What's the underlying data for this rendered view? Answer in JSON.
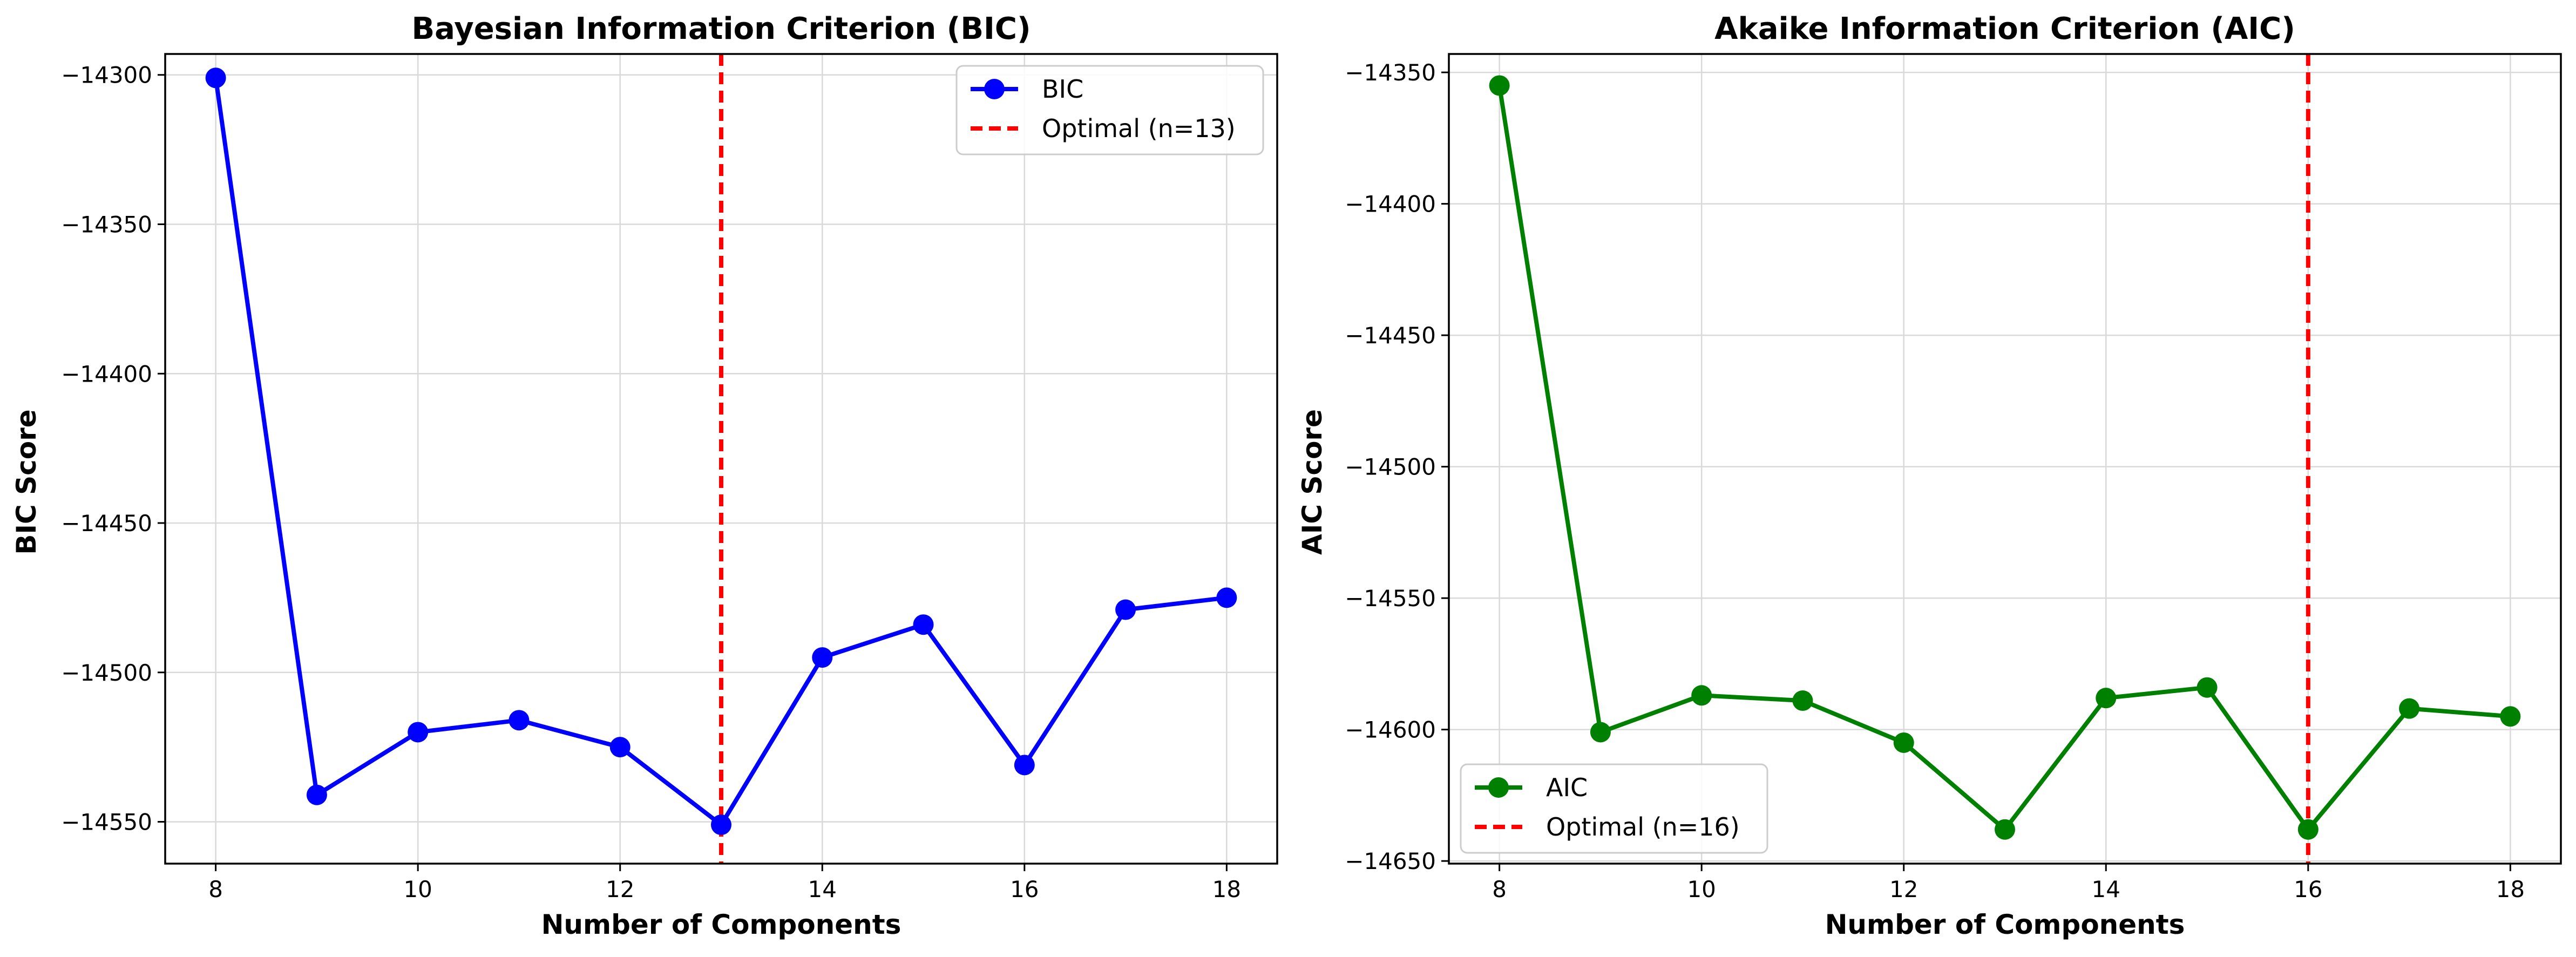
{
  "chart_data": [
    {
      "type": "line",
      "title": "Bayesian Information Criterion (BIC)",
      "xlabel": "Number of Components",
      "ylabel": "BIC Score",
      "x": [
        8,
        9,
        10,
        11,
        12,
        13,
        14,
        15,
        16,
        17,
        18
      ],
      "series": [
        {
          "name": "BIC",
          "color": "#0000ff",
          "values": [
            -14301,
            -14541,
            -14520,
            -14516,
            -14525,
            -14551,
            -14495,
            -14484,
            -14531,
            -14479,
            -14475
          ]
        }
      ],
      "reference_line": {
        "label": "Optimal (n=13)",
        "x": 13,
        "color": "#ff0000",
        "style": "dashed"
      },
      "xlim": [
        7.5,
        18.5
      ],
      "ylim": [
        -14564,
        -14293
      ],
      "xticks": [
        8,
        10,
        12,
        14,
        16,
        18
      ],
      "xtick_labels": [
        "8",
        "10",
        "12",
        "14",
        "16",
        "18"
      ],
      "yticks": [
        -14550,
        -14500,
        -14450,
        -14400,
        -14350,
        -14300
      ],
      "ytick_labels": [
        "−14550",
        "−14500",
        "−14450",
        "−14400",
        "−14350",
        "−14300"
      ],
      "grid": true,
      "legend_position": "top-right"
    },
    {
      "type": "line",
      "title": "Akaike Information Criterion (AIC)",
      "xlabel": "Number of Components",
      "ylabel": "AIC Score",
      "x": [
        8,
        9,
        10,
        11,
        12,
        13,
        14,
        15,
        16,
        17,
        18
      ],
      "series": [
        {
          "name": "AIC",
          "color": "#008000",
          "values": [
            -14355,
            -14601,
            -14587,
            -14589,
            -14605,
            -14638,
            -14588,
            -14584,
            -14638,
            -14592,
            -14595
          ]
        }
      ],
      "reference_line": {
        "label": "Optimal (n=16)",
        "x": 16,
        "color": "#ff0000",
        "style": "dashed"
      },
      "xlim": [
        7.5,
        18.5
      ],
      "ylim": [
        -14651,
        -14343
      ],
      "xticks": [
        8,
        10,
        12,
        14,
        16,
        18
      ],
      "xtick_labels": [
        "8",
        "10",
        "12",
        "14",
        "16",
        "18"
      ],
      "yticks": [
        -14650,
        -14600,
        -14550,
        -14500,
        -14450,
        -14400,
        -14350
      ],
      "ytick_labels": [
        "−14650",
        "−14600",
        "−14550",
        "−14500",
        "−14450",
        "−14400",
        "−14350"
      ],
      "grid": true,
      "legend_position": "bottom-left"
    }
  ]
}
